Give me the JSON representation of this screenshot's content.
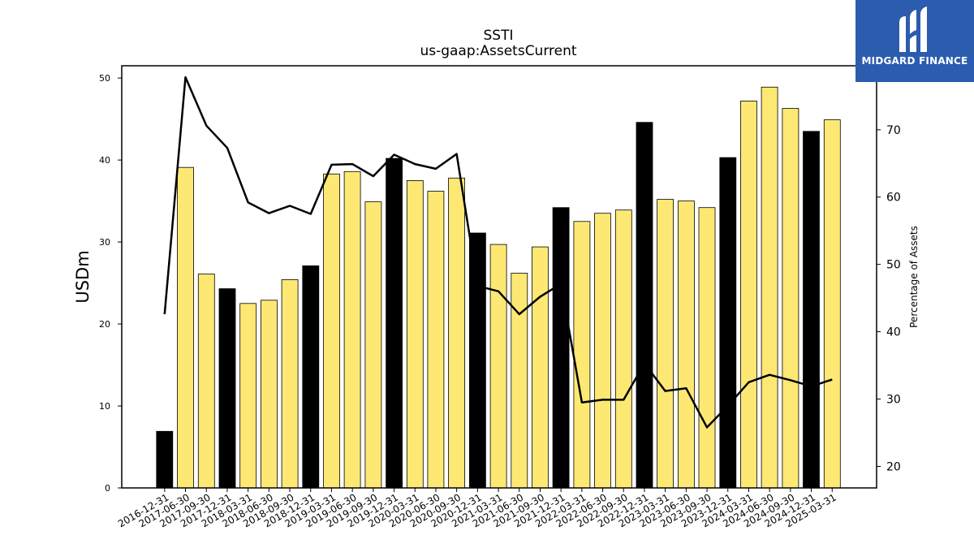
{
  "header": {
    "title": "SSTI",
    "subtitle": "us-gaap:AssetsCurrent"
  },
  "logo": {
    "text": "MIDGARD FINANCE",
    "icon": "midgard-logo-icon",
    "background": "#2b5cae"
  },
  "colors": {
    "bar_yellow": "#fde874",
    "bar_black": "#000000",
    "line": "#000000"
  },
  "chart_data": {
    "type": "bar",
    "title": "SSTI",
    "subtitle": "us-gaap:AssetsCurrent",
    "ylabel": "USDm",
    "ylabel_right": "Percentage of Assets",
    "ylim": [
      0,
      51.5
    ],
    "ylim_right": [
      16.8,
      79.5
    ],
    "yticks": [
      0,
      10,
      20,
      30,
      40,
      50
    ],
    "yticks_right": [
      20,
      30,
      40,
      50,
      60,
      70
    ],
    "grid": false,
    "categories": [
      "2016-12-31",
      "2017-06-30",
      "2017-09-30",
      "2017-12-31",
      "2018-03-31",
      "2018-06-30",
      "2018-09-30",
      "2018-12-31",
      "2019-03-31",
      "2019-06-30",
      "2019-09-30",
      "2019-12-31",
      "2020-03-31",
      "2020-06-30",
      "2020-09-30",
      "2020-12-31",
      "2021-03-31",
      "2021-06-30",
      "2021-09-30",
      "2021-12-31",
      "2022-03-31",
      "2022-06-30",
      "2022-09-30",
      "2022-12-31",
      "2023-03-31",
      "2023-06-30",
      "2023-09-30",
      "2023-12-31",
      "2024-03-31",
      "2024-06-30",
      "2024-09-30",
      "2024-12-31",
      "2025-03-31"
    ],
    "series": [
      {
        "type": "bar",
        "axis": "left",
        "values": [
          6.9,
          39.1,
          26.1,
          24.3,
          22.5,
          22.9,
          25.4,
          27.1,
          38.3,
          38.6,
          34.9,
          40.2,
          37.5,
          36.2,
          37.8,
          31.1,
          29.7,
          26.2,
          29.4,
          34.2,
          32.5,
          33.5,
          33.9,
          44.6,
          35.2,
          35.0,
          34.2,
          40.3,
          47.2,
          48.9,
          46.3,
          43.5,
          44.9
        ],
        "highlight": [
          true,
          false,
          false,
          true,
          false,
          false,
          false,
          true,
          false,
          false,
          false,
          true,
          false,
          false,
          false,
          true,
          false,
          false,
          false,
          true,
          false,
          false,
          false,
          true,
          false,
          false,
          false,
          true,
          false,
          false,
          false,
          true,
          false
        ]
      },
      {
        "type": "line",
        "axis": "right",
        "values": [
          42.6,
          77.8,
          70.6,
          67.3,
          59.2,
          57.6,
          58.7,
          57.5,
          64.8,
          64.9,
          63.1,
          66.3,
          64.9,
          64.2,
          66.4,
          46.8,
          46.0,
          42.6,
          45.2,
          47.1,
          29.5,
          29.9,
          29.9,
          35.3,
          31.2,
          31.6,
          25.8,
          29.0,
          32.5,
          33.6,
          32.8,
          31.9,
          32.9
        ]
      }
    ]
  }
}
